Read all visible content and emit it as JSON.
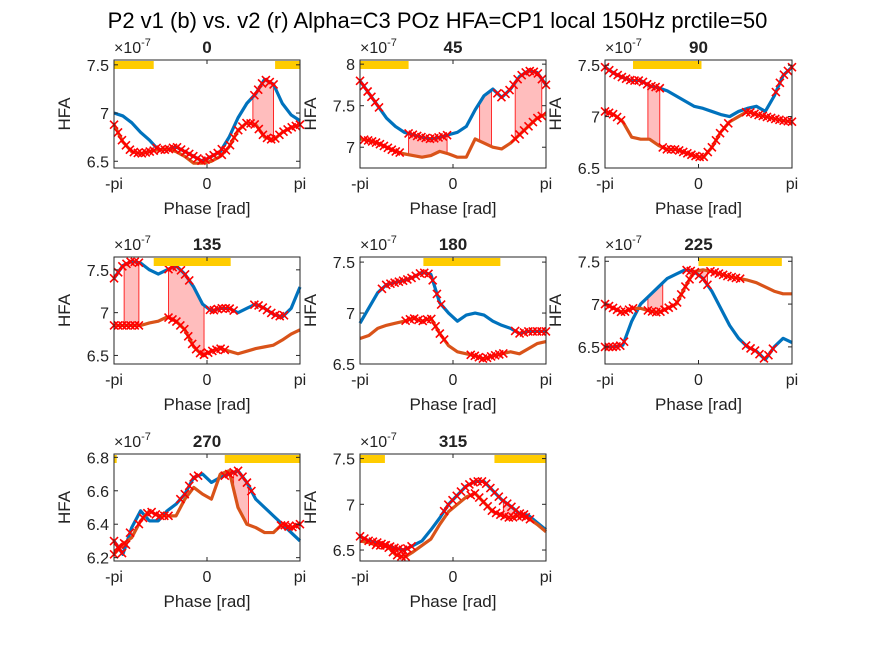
{
  "title": "P2 v1 (b) vs. v2 (r) Alpha=C3 POz HFA=CP1 local 150Hz prctile=50",
  "colors": {
    "v1": "#0072BD",
    "v2": "#D95319",
    "marker": "#FF0000",
    "sig": "#FFB6B6",
    "bar": "#FFCC00"
  },
  "chart_data": [
    {
      "type": "line",
      "title": "0",
      "xlabel": "Phase [rad]",
      "ylabel": "HFA",
      "exponent": "×10-7",
      "xticks": [
        "-pi",
        "0",
        "pi"
      ],
      "yticks": [
        6.5,
        7,
        7.5
      ],
      "ylim": [
        6.43,
        7.55
      ],
      "grid": false,
      "series": [
        {
          "name": "v1 (b)",
          "values": [
            7.0,
            6.97,
            6.9,
            6.8,
            6.72,
            6.62,
            6.62,
            6.65,
            6.6,
            6.55,
            6.5,
            6.55,
            6.6,
            6.75,
            6.95,
            7.1,
            7.2,
            7.35,
            7.3,
            7.1,
            6.98,
            6.92
          ]
        },
        {
          "name": "v2 (r)",
          "values": [
            6.88,
            6.7,
            6.6,
            6.58,
            6.6,
            6.62,
            6.63,
            6.6,
            6.55,
            6.48,
            6.48,
            6.5,
            6.55,
            6.65,
            6.82,
            6.9,
            6.88,
            6.75,
            6.72,
            6.8,
            6.85,
            6.88
          ]
        }
      ],
      "sig_ranges": [
        [
          1.55,
          2.25
        ]
      ],
      "bars": [
        [
          -3.1416,
          -1.8
        ],
        [
          2.3,
          3.1416
        ]
      ],
      "markers": [
        {
          "series": 0,
          "x": [
            1.6,
            2.25
          ]
        },
        {
          "series": 1,
          "x": [
            -3.14,
            -1.8
          ]
        },
        {
          "series": 0,
          "x": [
            -1.7,
            0.5
          ]
        },
        {
          "series": 1,
          "x": [
            0.5,
            3.14
          ]
        }
      ]
    },
    {
      "type": "line",
      "title": "45",
      "xlabel": "Phase [rad]",
      "ylabel": "HFA",
      "exponent": "×10-7",
      "xticks": [
        "-pi",
        "0",
        "pi"
      ],
      "yticks": [
        7,
        7.5,
        8
      ],
      "ylim": [
        6.75,
        8.05
      ],
      "grid": false,
      "series": [
        {
          "name": "v1 (b)",
          "values": [
            7.8,
            7.65,
            7.5,
            7.35,
            7.25,
            7.18,
            7.15,
            7.12,
            7.1,
            7.12,
            7.15,
            7.18,
            7.25,
            7.45,
            7.62,
            7.7,
            7.6,
            7.7,
            7.85,
            7.92,
            7.9,
            7.75
          ]
        },
        {
          "name": "v2 (r)",
          "values": [
            7.1,
            7.08,
            7.05,
            7.0,
            6.95,
            6.92,
            6.9,
            6.88,
            6.9,
            6.95,
            6.92,
            6.88,
            6.88,
            7.1,
            7.05,
            7.0,
            6.98,
            7.05,
            7.15,
            7.25,
            7.35,
            7.4
          ]
        }
      ],
      "sig_ranges": [
        [
          -1.5,
          -0.2
        ],
        [
          0.9,
          1.3
        ],
        [
          2.1,
          3.0
        ]
      ],
      "bars": [
        [
          -3.1416,
          -1.5
        ]
      ],
      "markers": [
        {
          "series": 0,
          "x": [
            -3.14,
            -2.5
          ]
        },
        {
          "series": 1,
          "x": [
            -3.0,
            -1.8
          ]
        },
        {
          "series": 0,
          "x": [
            -1.5,
            -0.2
          ]
        },
        {
          "series": 0,
          "x": [
            1.5,
            3.14
          ]
        },
        {
          "series": 1,
          "x": [
            2.1,
            3.0
          ]
        }
      ]
    },
    {
      "type": "line",
      "title": "90",
      "xlabel": "Phase [rad]",
      "ylabel": "HFA",
      "exponent": "×10-7",
      "xticks": [
        "-pi",
        "0",
        "pi"
      ],
      "yticks": [
        6.5,
        7,
        7.5
      ],
      "ylim": [
        6.5,
        7.55
      ],
      "grid": false,
      "series": [
        {
          "name": "v1 (b)",
          "values": [
            7.48,
            7.42,
            7.38,
            7.35,
            7.35,
            7.3,
            7.28,
            7.25,
            7.2,
            7.15,
            7.1,
            7.08,
            7.05,
            7.02,
            7.0,
            7.05,
            7.08,
            7.1,
            7.05,
            7.2,
            7.4,
            7.48
          ]
        },
        {
          "name": "v2 (r)",
          "values": [
            7.05,
            7.02,
            6.95,
            6.8,
            6.78,
            6.78,
            6.72,
            6.68,
            6.68,
            6.65,
            6.62,
            6.6,
            6.7,
            6.85,
            6.95,
            7.0,
            7.05,
            7.02,
            7.0,
            6.98,
            6.96,
            6.95
          ]
        }
      ],
      "sig_ranges": [
        [
          -1.7,
          -1.3
        ]
      ],
      "bars": [
        [
          -2.2,
          0.1
        ]
      ],
      "markers": [
        {
          "series": 0,
          "x": [
            -3.14,
            -1.3
          ]
        },
        {
          "series": 1,
          "x": [
            -3.14,
            -2.6
          ]
        },
        {
          "series": 1,
          "x": [
            -1.2,
            1.0
          ]
        },
        {
          "series": 0,
          "x": [
            2.6,
            3.14
          ]
        },
        {
          "series": 1,
          "x": [
            1.6,
            3.14
          ]
        }
      ]
    },
    {
      "type": "line",
      "title": "135",
      "xlabel": "Phase [rad]",
      "ylabel": "HFA",
      "exponent": "×10-7",
      "xticks": [
        "-pi",
        "0",
        "pi"
      ],
      "yticks": [
        6.5,
        7,
        7.5
      ],
      "ylim": [
        6.4,
        7.65
      ],
      "grid": false,
      "series": [
        {
          "name": "v1 (b)",
          "values": [
            7.4,
            7.55,
            7.6,
            7.58,
            7.5,
            7.45,
            7.5,
            7.55,
            7.45,
            7.3,
            7.1,
            7.02,
            7.05,
            7.05,
            7.0,
            7.05,
            7.1,
            7.05,
            6.98,
            6.95,
            7.05,
            7.3
          ]
        },
        {
          "name": "v2 (r)",
          "values": [
            6.85,
            6.85,
            6.85,
            6.85,
            6.88,
            6.9,
            6.95,
            6.9,
            6.8,
            6.6,
            6.5,
            6.55,
            6.58,
            6.55,
            6.52,
            6.55,
            6.58,
            6.6,
            6.62,
            6.68,
            6.75,
            6.8
          ]
        }
      ],
      "sig_ranges": [
        [
          -2.8,
          -2.3
        ],
        [
          -1.3,
          -0.1
        ]
      ],
      "bars": [
        [
          -1.8,
          0.8
        ]
      ],
      "markers": [
        {
          "series": 0,
          "x": [
            -3.14,
            -2.3
          ]
        },
        {
          "series": 1,
          "x": [
            -3.14,
            -2.3
          ]
        },
        {
          "series": 0,
          "x": [
            -1.3,
            -0.6
          ]
        },
        {
          "series": 1,
          "x": [
            -1.3,
            -0.1
          ]
        },
        {
          "series": 1,
          "x": [
            -0.1,
            0.6
          ]
        },
        {
          "series": 0,
          "x": [
            0.1,
            0.9
          ]
        },
        {
          "series": 0,
          "x": [
            1.6,
            2.6
          ]
        }
      ]
    },
    {
      "type": "line",
      "title": "180",
      "xlabel": "Phase [rad]",
      "ylabel": "HFA",
      "exponent": "×10-7",
      "xticks": [
        "-pi",
        "0",
        "pi"
      ],
      "yticks": [
        6.5,
        7,
        7.5
      ],
      "ylim": [
        6.5,
        7.55
      ],
      "grid": false,
      "series": [
        {
          "name": "v1 (b)",
          "values": [
            6.9,
            7.05,
            7.2,
            7.28,
            7.3,
            7.32,
            7.35,
            7.4,
            7.38,
            7.1,
            7.0,
            6.92,
            6.98,
            7.0,
            6.98,
            6.92,
            6.88,
            6.85,
            6.8,
            6.82,
            6.82,
            6.82
          ]
        },
        {
          "name": "v2 (r)",
          "values": [
            6.75,
            6.78,
            6.85,
            6.88,
            6.9,
            6.92,
            6.95,
            6.92,
            6.95,
            6.8,
            6.68,
            6.62,
            6.6,
            6.58,
            6.55,
            6.58,
            6.6,
            6.62,
            6.6,
            6.65,
            6.7,
            6.72
          ]
        }
      ],
      "sig_ranges": [],
      "bars": [
        [
          -1.0,
          1.6
        ]
      ],
      "markers": [
        {
          "series": 0,
          "x": [
            -2.4,
            -0.4
          ]
        },
        {
          "series": 1,
          "x": [
            -1.6,
            -0.3
          ]
        },
        {
          "series": 1,
          "x": [
            0.6,
            1.7
          ]
        },
        {
          "series": 0,
          "x": [
            2.1,
            3.14
          ]
        }
      ]
    },
    {
      "type": "line",
      "title": "225",
      "xlabel": "Phase [rad]",
      "ylabel": "HFA",
      "exponent": "×10-7",
      "xticks": [
        "-pi",
        "0",
        "pi"
      ],
      "yticks": [
        6.5,
        7,
        7.5
      ],
      "ylim": [
        6.3,
        7.55
      ],
      "grid": false,
      "series": [
        {
          "name": "v1 (b)",
          "values": [
            6.5,
            6.5,
            6.52,
            6.8,
            7.0,
            7.1,
            7.2,
            7.3,
            7.35,
            7.4,
            7.38,
            7.3,
            7.15,
            6.95,
            6.75,
            6.6,
            6.5,
            6.45,
            6.35,
            6.5,
            6.6,
            6.55
          ]
        },
        {
          "name": "v2 (r)",
          "values": [
            7.0,
            6.95,
            6.9,
            6.95,
            6.95,
            6.92,
            6.9,
            6.95,
            7.0,
            7.2,
            7.38,
            7.4,
            7.38,
            7.35,
            7.32,
            7.3,
            7.28,
            7.25,
            7.2,
            7.15,
            7.12,
            7.12
          ]
        }
      ],
      "sig_ranges": [
        [
          -1.7,
          -1.2
        ],
        [
          -0.2,
          0.3
        ]
      ],
      "bars": [
        [
          0.0,
          2.8
        ]
      ],
      "markers": [
        {
          "series": 0,
          "x": [
            -3.14,
            -2.5
          ]
        },
        {
          "series": 1,
          "x": [
            -3.14,
            -2.2
          ]
        },
        {
          "series": 1,
          "x": [
            -1.7,
            -0.3
          ]
        },
        {
          "series": 0,
          "x": [
            -0.4,
            0.3
          ]
        },
        {
          "series": 0,
          "x": [
            1.6,
            2.5
          ]
        },
        {
          "series": 1,
          "x": [
            0.4,
            1.4
          ]
        }
      ]
    },
    {
      "type": "line",
      "title": "270",
      "xlabel": "Phase [rad]",
      "ylabel": "HFA",
      "exponent": "×10-7",
      "xticks": [
        "-pi",
        "0",
        "pi"
      ],
      "yticks": [
        6.2,
        6.4,
        6.6,
        6.8
      ],
      "ylim": [
        6.18,
        6.82
      ],
      "grid": false,
      "series": [
        {
          "name": "v1 (b)",
          "values": [
            6.3,
            6.22,
            6.38,
            6.48,
            6.42,
            6.42,
            6.48,
            6.52,
            6.58,
            6.68,
            6.7,
            6.65,
            6.68,
            6.7,
            6.72,
            6.65,
            6.55,
            6.5,
            6.45,
            6.4,
            6.35,
            6.3
          ]
        },
        {
          "name": "v2 (r)",
          "values": [
            6.22,
            6.28,
            6.32,
            6.42,
            6.48,
            6.45,
            6.45,
            6.45,
            6.55,
            6.62,
            6.58,
            6.55,
            6.7,
            6.72,
            6.5,
            6.4,
            6.38,
            6.35,
            6.35,
            6.4,
            6.38,
            6.4
          ]
        }
      ],
      "sig_ranges": [
        [
          0.9,
          1.4
        ]
      ],
      "bars": [
        [
          -3.1416,
          -3.05
        ],
        [
          0.6,
          3.1416
        ]
      ],
      "markers": [
        {
          "series": 0,
          "x": [
            -3.14,
            -2.6
          ]
        },
        {
          "series": 1,
          "x": [
            -3.14,
            -2.8
          ]
        },
        {
          "series": 1,
          "x": [
            -2.3,
            -1.3
          ]
        },
        {
          "series": 0,
          "x": [
            -0.9,
            -0.3
          ]
        },
        {
          "series": 0,
          "x": [
            0.6,
            1.5
          ]
        },
        {
          "series": 1,
          "x": [
            2.5,
            3.14
          ]
        }
      ]
    },
    {
      "type": "line",
      "title": "315",
      "xlabel": "Phase [rad]",
      "ylabel": "HFA",
      "exponent": "×10-7",
      "xticks": [
        "-pi",
        "0",
        "pi"
      ],
      "yticks": [
        6.5,
        7,
        7.5
      ],
      "ylim": [
        6.38,
        7.55
      ],
      "grid": false,
      "series": [
        {
          "name": "v1 (b)",
          "values": [
            6.65,
            6.6,
            6.58,
            6.55,
            6.52,
            6.5,
            6.55,
            6.6,
            6.72,
            6.85,
            7.0,
            7.1,
            7.2,
            7.25,
            7.25,
            7.15,
            7.05,
            6.98,
            6.9,
            6.88,
            6.8,
            6.72
          ]
        },
        {
          "name": "v2 (r)",
          "values": [
            6.6,
            6.58,
            6.55,
            6.55,
            6.45,
            6.42,
            6.48,
            6.55,
            6.62,
            6.78,
            6.92,
            7.0,
            7.08,
            7.12,
            7.02,
            6.92,
            6.88,
            6.85,
            6.88,
            6.85,
            6.78,
            6.7
          ]
        }
      ],
      "sig_ranges": [
        [
          -2.0,
          -1.6
        ],
        [
          1.7,
          2.4
        ]
      ],
      "bars": [
        [
          -3.1416,
          -2.3
        ],
        [
          1.4,
          3.1416
        ]
      ],
      "markers": [
        {
          "series": 0,
          "x": [
            -3.14,
            -1.4
          ]
        },
        {
          "series": 1,
          "x": [
            -2.6,
            -1.6
          ]
        },
        {
          "series": 0,
          "x": [
            -0.3,
            2.4
          ]
        },
        {
          "series": 1,
          "x": [
            0.6,
            2.6
          ]
        }
      ]
    }
  ]
}
